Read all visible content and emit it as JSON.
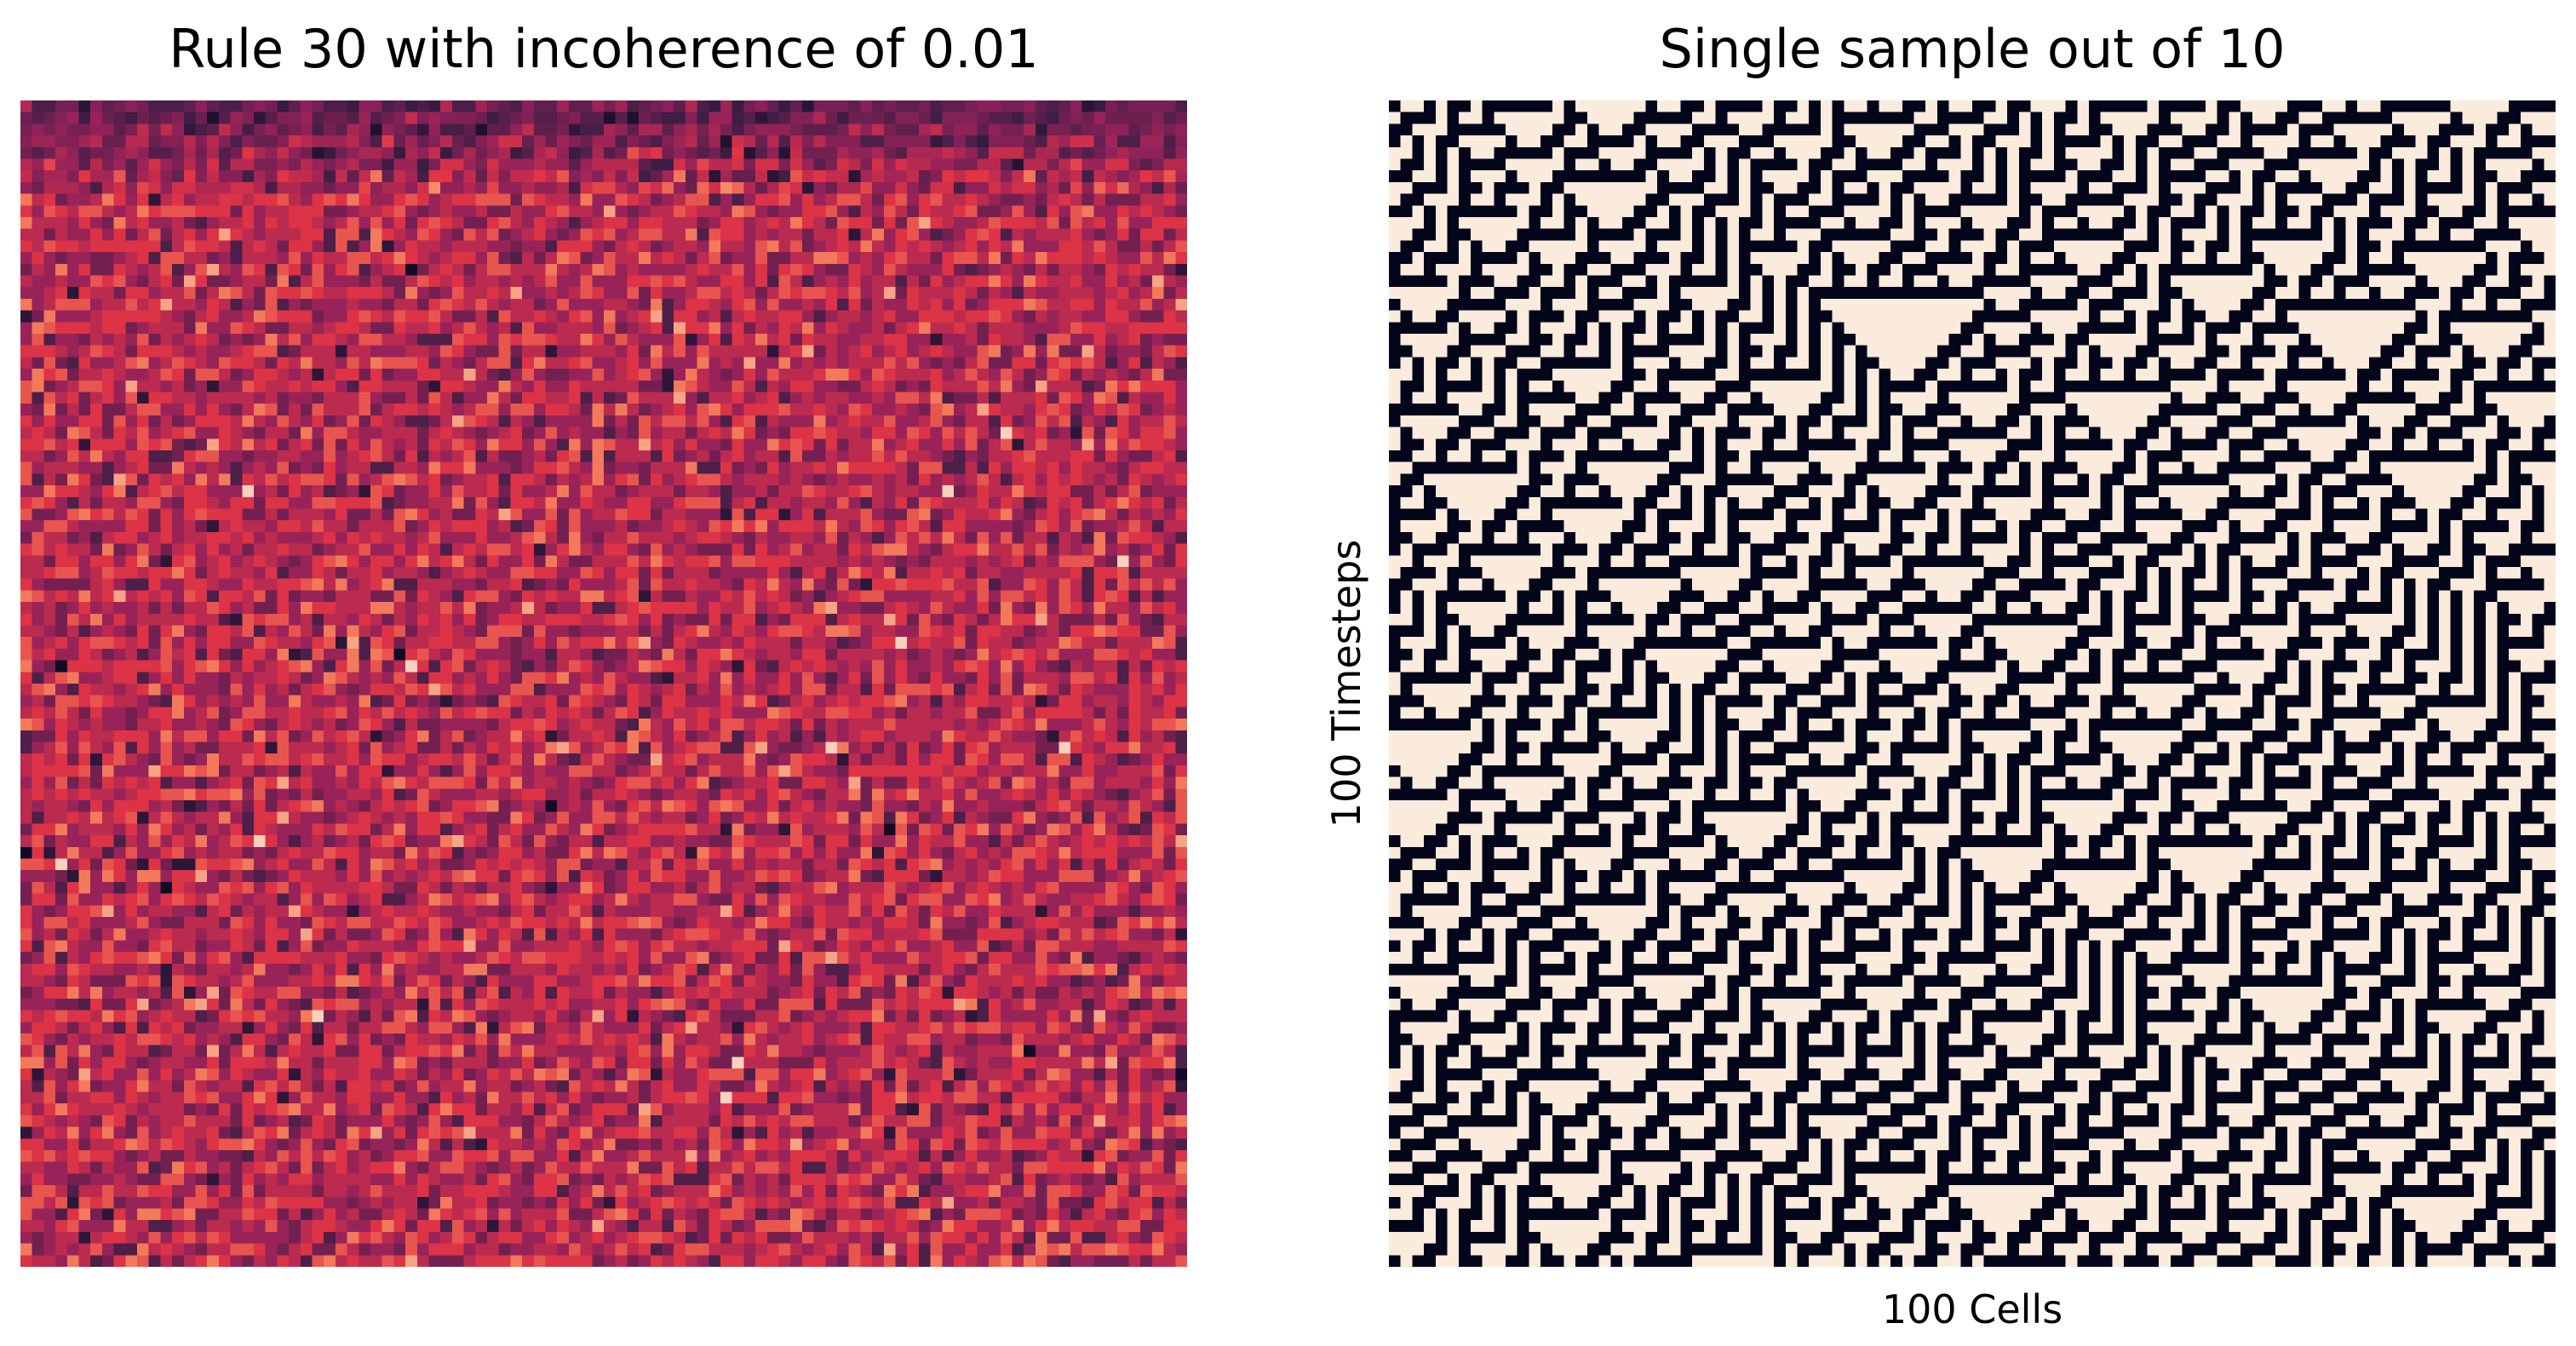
{
  "chart_data": [
    {
      "type": "heatmap",
      "title": "Rule 30 with incoherence of 0.01",
      "xlabel": "",
      "ylabel": "",
      "rows": 100,
      "cols": 100,
      "colormap": "rocket",
      "value_description": "per-cell average state across samples",
      "typical_value_range": [
        0.3,
        0.7
      ],
      "top_rows_darker": true,
      "axis_ticks": false,
      "colorbar": false
    },
    {
      "type": "heatmap",
      "title": "Single sample out of 10",
      "xlabel": "100 Cells",
      "ylabel": "100 Timesteps",
      "rows": 100,
      "cols": 100,
      "rule": 30,
      "values_binary": true,
      "colors": {
        "on": "#03051a",
        "off": "#faebdd"
      },
      "axis_ticks": false,
      "colorbar": false
    }
  ]
}
